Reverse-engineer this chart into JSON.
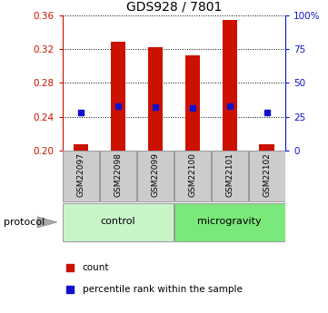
{
  "title": "GDS928 / 7801",
  "samples": [
    "GSM22097",
    "GSM22098",
    "GSM22099",
    "GSM22100",
    "GSM22101",
    "GSM22102"
  ],
  "bar_tops": [
    0.207,
    0.329,
    0.322,
    0.313,
    0.355,
    0.207
  ],
  "bar_bottom": 0.2,
  "blue_y": [
    0.245,
    0.252,
    0.251,
    0.25,
    0.252,
    0.245
  ],
  "ylim": [
    0.2,
    0.36
  ],
  "y2lim": [
    0,
    100
  ],
  "yticks": [
    0.2,
    0.24,
    0.28,
    0.32,
    0.36
  ],
  "y2ticks": [
    0,
    25,
    50,
    75,
    100
  ],
  "groups": [
    {
      "label": "control",
      "samples": [
        0,
        1,
        2
      ],
      "color": "#c8f5c8"
    },
    {
      "label": "microgravity",
      "samples": [
        3,
        4,
        5
      ],
      "color": "#7ae87a"
    }
  ],
  "protocol_label": "protocol",
  "bar_color": "#cc1100",
  "blue_color": "#1111cc",
  "left_tick_color": "#cc1100",
  "right_tick_color": "#1111cc",
  "sample_box_color": "#cccccc",
  "legend_items": [
    {
      "label": "count",
      "color": "#cc1100"
    },
    {
      "label": "percentile rank within the sample",
      "color": "#1111cc"
    }
  ],
  "bar_width": 0.4,
  "figsize": [
    3.61,
    3.45
  ],
  "dpi": 100
}
